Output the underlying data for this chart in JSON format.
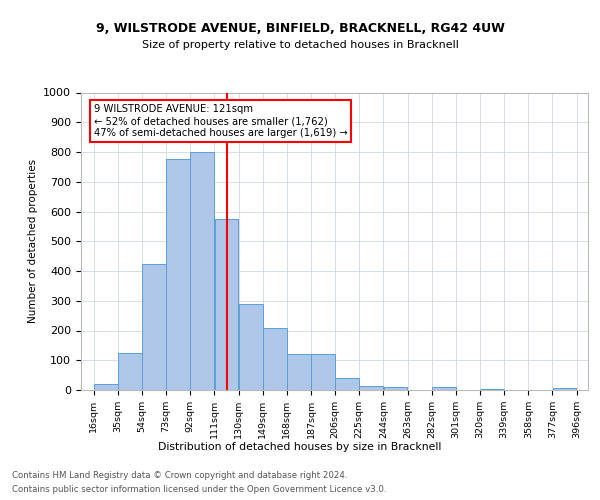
{
  "title1": "9, WILSTRODE AVENUE, BINFIELD, BRACKNELL, RG42 4UW",
  "title2": "Size of property relative to detached houses in Bracknell",
  "xlabel": "Distribution of detached houses by size in Bracknell",
  "ylabel": "Number of detached properties",
  "bar_labels": [
    "16sqm",
    "35sqm",
    "54sqm",
    "73sqm",
    "92sqm",
    "111sqm",
    "130sqm",
    "149sqm",
    "168sqm",
    "187sqm",
    "206sqm",
    "225sqm",
    "244sqm",
    "263sqm",
    "282sqm",
    "301sqm",
    "320sqm",
    "339sqm",
    "358sqm",
    "377sqm",
    "396sqm"
  ],
  "bar_values": [
    20,
    125,
    425,
    775,
    800,
    575,
    290,
    210,
    120,
    120,
    40,
    15,
    10,
    0,
    10,
    0,
    5,
    0,
    0,
    8,
    0
  ],
  "bar_color": "#aec6e8",
  "bar_edge_color": "#5a9fd4",
  "vline_x": 121,
  "vline_color": "red",
  "ylim": [
    0,
    1000
  ],
  "yticks": [
    0,
    100,
    200,
    300,
    400,
    500,
    600,
    700,
    800,
    900,
    1000
  ],
  "footer1": "Contains HM Land Registry data © Crown copyright and database right 2024.",
  "footer2": "Contains public sector information licensed under the Open Government Licence v3.0.",
  "bg_color": "#ffffff",
  "grid_color": "#d0d8e8",
  "annotation_text": "9 WILSTRODE AVENUE: 121sqm\n← 52% of detached houses are smaller (1,762)\n47% of semi-detached houses are larger (1,619) →"
}
